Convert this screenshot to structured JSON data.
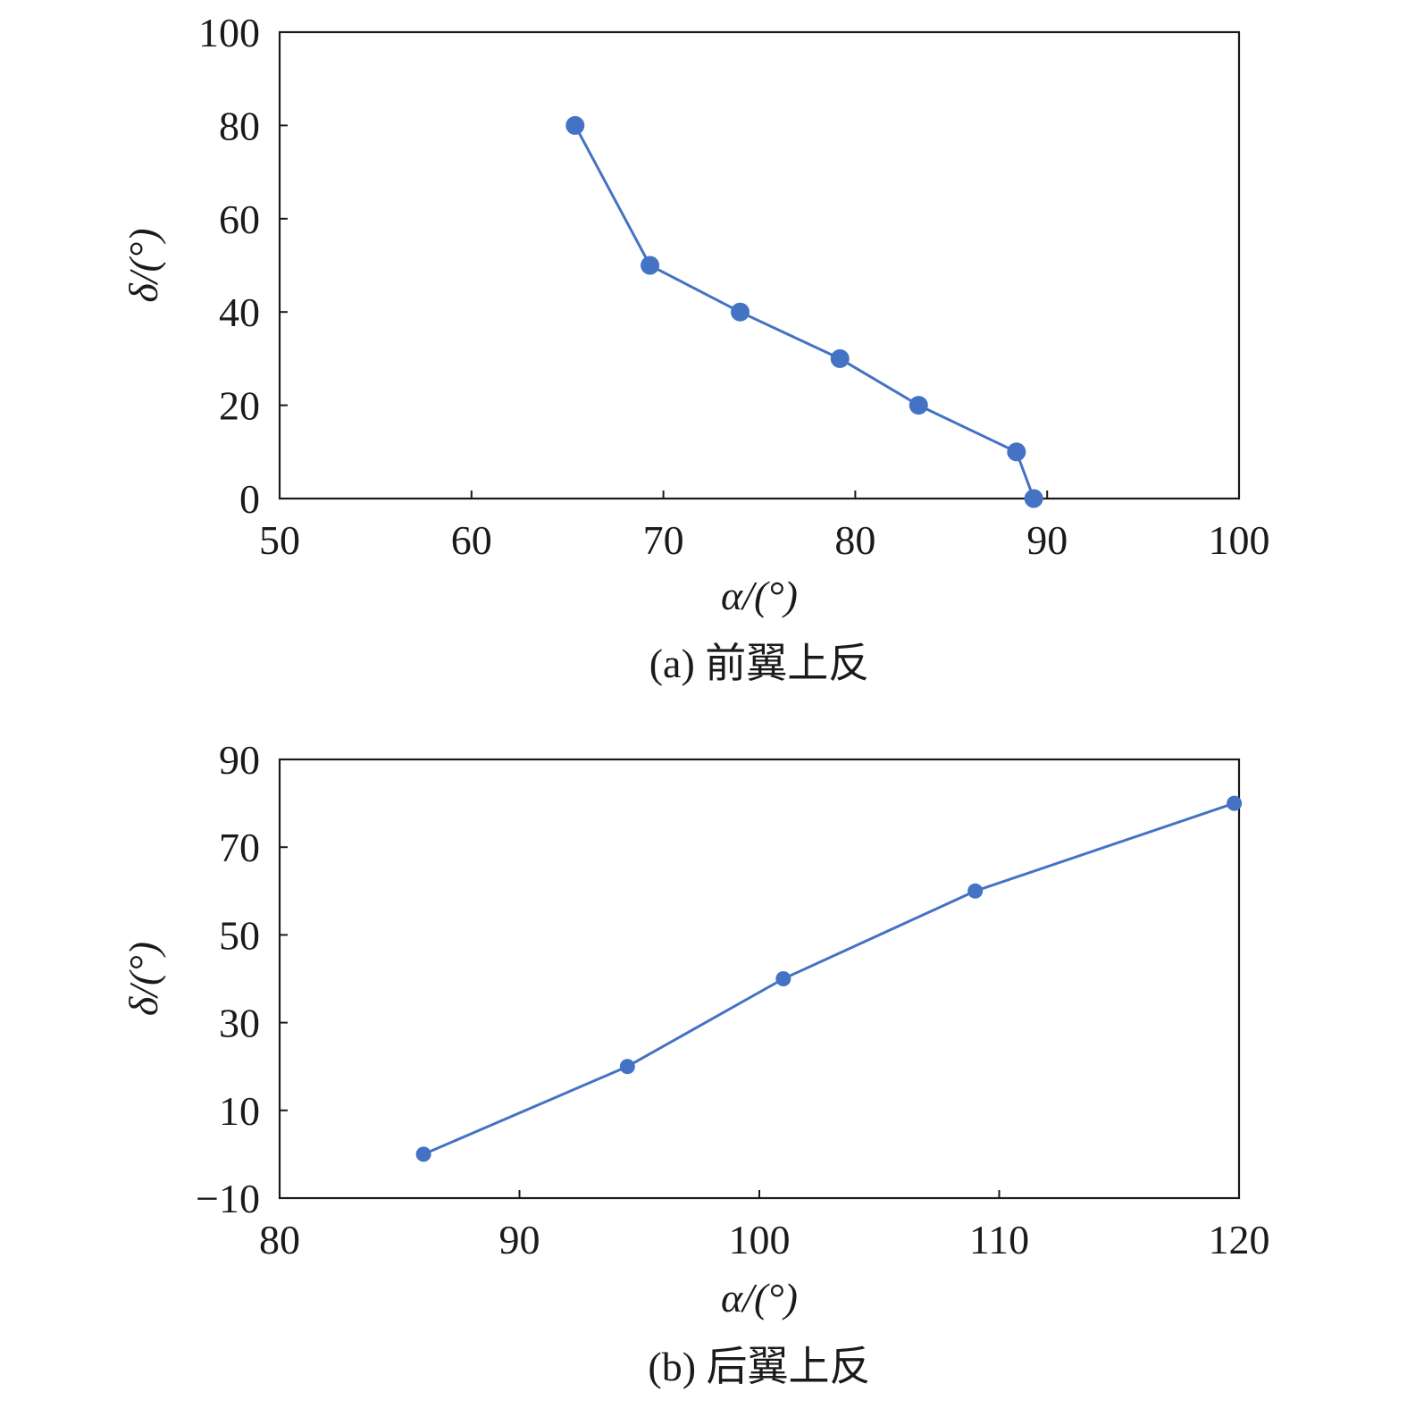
{
  "colors": {
    "series": "#4472C4",
    "axis": "#1a1a1a"
  },
  "chart_data": [
    {
      "type": "line",
      "caption": "(a) 前翼上反",
      "xlabel": "α/(°)",
      "ylabel": "δ/(°)",
      "xlim": [
        50,
        100
      ],
      "ylim": [
        0,
        100
      ],
      "xticks": [
        50,
        60,
        70,
        80,
        90,
        100
      ],
      "yticks": [
        0,
        20,
        40,
        60,
        80,
        100
      ],
      "grid": false,
      "series": [
        {
          "x": [
            65.4,
            69.3,
            74.0,
            79.2,
            83.3,
            88.4,
            89.3
          ],
          "y": [
            80,
            50,
            40,
            30,
            20,
            10,
            0
          ]
        }
      ]
    },
    {
      "type": "line",
      "caption": "(b) 后翼上反",
      "xlabel": "α/(°)",
      "ylabel": "δ/(°)",
      "xlim": [
        80,
        120
      ],
      "ylim": [
        -10,
        90
      ],
      "xticks": [
        80,
        90,
        100,
        110,
        120
      ],
      "yticks": [
        -10,
        10,
        30,
        50,
        70,
        90
      ],
      "ytick_labels": [
        "−10",
        "10",
        "30",
        "50",
        "70",
        "90"
      ],
      "grid": false,
      "series": [
        {
          "x": [
            86.0,
            94.5,
            101.0,
            109.0,
            119.8
          ],
          "y": [
            0,
            20,
            40,
            60,
            80
          ]
        }
      ]
    }
  ]
}
